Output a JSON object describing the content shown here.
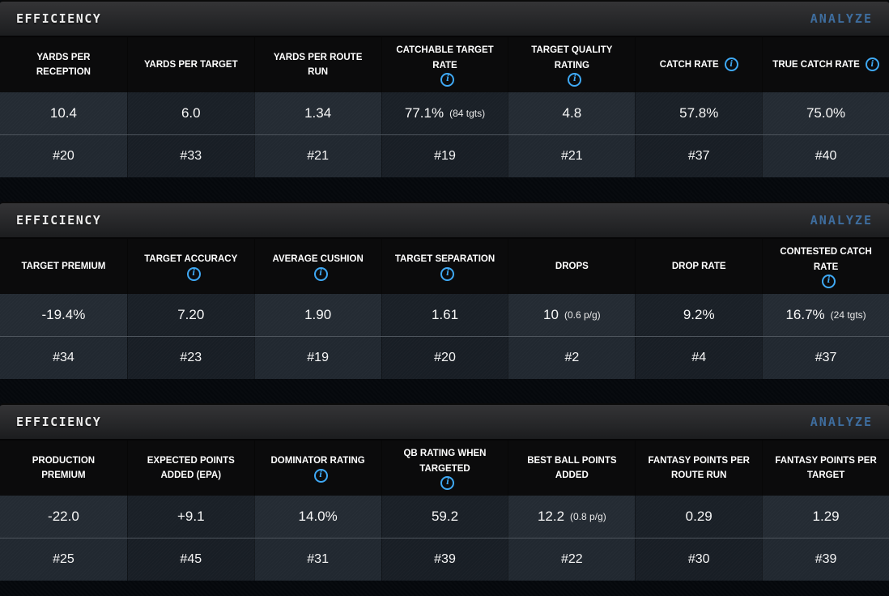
{
  "colors": {
    "accent_info_blue": "#3fa9f5",
    "analyze_blue": "#3e6d9e",
    "page_bg": "#05080c",
    "header_bar_gradient_top": "#343436",
    "header_bar_gradient_bottom": "#1c1d1f"
  },
  "sections": [
    {
      "title": "EFFICIENCY",
      "action": "ANALYZE",
      "columns": [
        {
          "header": "YARDS PER RECEPTION",
          "info": false,
          "value": "10.4",
          "note": "",
          "rank": "#20"
        },
        {
          "header": "YARDS PER TARGET",
          "info": false,
          "value": "6.0",
          "note": "",
          "rank": "#33"
        },
        {
          "header": "YARDS PER ROUTE RUN",
          "info": false,
          "value": "1.34",
          "note": "",
          "rank": "#21"
        },
        {
          "header": "CATCHABLE TARGET RATE",
          "info": true,
          "value": "77.1%",
          "note": "(84 tgts)",
          "rank": "#19"
        },
        {
          "header": "TARGET QUALITY RATING",
          "info": true,
          "value": "4.8",
          "note": "",
          "rank": "#21"
        },
        {
          "header": "CATCH RATE",
          "info": true,
          "value": "57.8%",
          "note": "",
          "rank": "#37"
        },
        {
          "header": "TRUE CATCH RATE",
          "info": true,
          "value": "75.0%",
          "note": "",
          "rank": "#40"
        }
      ]
    },
    {
      "title": "EFFICIENCY",
      "action": "ANALYZE",
      "columns": [
        {
          "header": "TARGET PREMIUM",
          "info": false,
          "value": "-19.4%",
          "note": "",
          "rank": "#34"
        },
        {
          "header": "TARGET ACCURACY",
          "info": true,
          "value": "7.20",
          "note": "",
          "rank": "#23"
        },
        {
          "header": "AVERAGE CUSHION",
          "info": true,
          "value": "1.90",
          "note": "",
          "rank": "#19"
        },
        {
          "header": "TARGET SEPARATION",
          "info": true,
          "value": "1.61",
          "note": "",
          "rank": "#20"
        },
        {
          "header": "DROPS",
          "info": false,
          "value": "10",
          "note": "(0.6 p/g)",
          "rank": "#2"
        },
        {
          "header": "DROP RATE",
          "info": false,
          "value": "9.2%",
          "note": "",
          "rank": "#4"
        },
        {
          "header": "CONTESTED CATCH RATE",
          "info": true,
          "value": "16.7%",
          "note": "(24 tgts)",
          "rank": "#37"
        }
      ]
    },
    {
      "title": "EFFICIENCY",
      "action": "ANALYZE",
      "columns": [
        {
          "header": "PRODUCTION PREMIUM",
          "info": false,
          "value": "-22.0",
          "note": "",
          "rank": "#25"
        },
        {
          "header": "EXPECTED POINTS ADDED (EPA)",
          "info": false,
          "value": "+9.1",
          "note": "",
          "rank": "#45"
        },
        {
          "header": "DOMINATOR RATING",
          "info": true,
          "value": "14.0%",
          "note": "",
          "rank": "#31"
        },
        {
          "header": "QB RATING WHEN TARGETED",
          "info": true,
          "value": "59.2",
          "note": "",
          "rank": "#39"
        },
        {
          "header": "BEST BALL POINTS ADDED",
          "info": false,
          "value": "12.2",
          "note": "(0.8 p/g)",
          "rank": "#22"
        },
        {
          "header": "FANTASY POINTS PER ROUTE RUN",
          "info": false,
          "value": "0.29",
          "note": "",
          "rank": "#30"
        },
        {
          "header": "FANTASY POINTS PER TARGET",
          "info": false,
          "value": "1.29",
          "note": "",
          "rank": "#39"
        }
      ]
    }
  ]
}
